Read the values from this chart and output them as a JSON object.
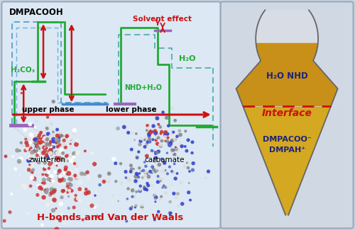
{
  "background_color": "#c8d4e0",
  "left_panel_bg": "#dce8f4",
  "right_panel_bg": "#d0d8e4",
  "border_color": "#9aaabb",
  "energy1": {
    "label": "DMPACOOH",
    "h2co3": "H₂CO₃"
  },
  "energy2": {
    "solvent_effect": "Solvent effect",
    "h2o": "H₂O",
    "nhd": "NHD+H₂O",
    "carbamate": "carbamate"
  },
  "upper_phase": "upper phase",
  "lower_phase": "lower phase",
  "zwitterion": "zwitterion",
  "bottom_label": "H-bonds and Van der Waals",
  "bottom_label_color": "#cc1111",
  "flask_upper": "H₂O NHD",
  "flask_interface": "Interface",
  "flask_lower_1": "DMPACOO⁻",
  "flask_lower_2": "DMPAH⁺",
  "flask_label_color": "#1a237e",
  "flask_interface_color": "#cc1111",
  "green": "#22aa33",
  "blue_dash": "#4499cc",
  "teal_dash": "#44aaaa",
  "red": "#cc1111",
  "purple": "#9966bb",
  "blue_plat": "#4488cc"
}
